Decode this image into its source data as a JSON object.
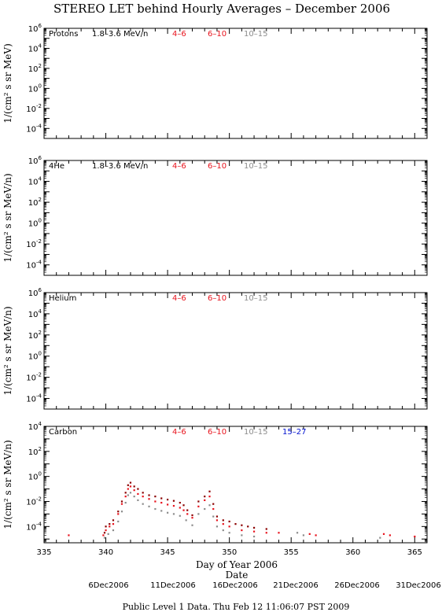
{
  "page": {
    "title": "STEREO LET behind Hourly Averages – December 2006",
    "xlabel": "Day of Year 2006",
    "date_axis_label": "Date",
    "date_labels": [
      "6Dec2006",
      "11Dec2006",
      "16Dec2006",
      "21Dec2006",
      "26Dec2006",
      "31Dec2006"
    ],
    "footer": "Public Level 1 Data. Thu Feb 12 11:06:07 PST 2009"
  },
  "colors": {
    "4-6": "#8b0000",
    "6-10": "#e8141e",
    "10-15": "#8c8c8c",
    "15-27": "#0010d0",
    "frame": "#000000"
  },
  "chart_data": [
    {
      "type": "scatter",
      "species": "Protons",
      "ylabel": "1/(cm² s sr MeV)",
      "ylog": true,
      "ylim_exp": [
        -5,
        6
      ],
      "ytick_exps": [
        6,
        4,
        2,
        0,
        -2,
        -4
      ],
      "xlim": [
        335,
        366
      ],
      "xticks": [
        335,
        340,
        345,
        350,
        355,
        360,
        365
      ],
      "legend": [
        {
          "label": "1.8–3.6 MeV/n",
          "color": "#000000"
        },
        {
          "label": "4–6",
          "color": "#e8141e"
        },
        {
          "label": "6–10",
          "color": "#e8141e"
        },
        {
          "label": "10–15",
          "color": "#8c8c8c"
        }
      ],
      "series": []
    },
    {
      "type": "scatter",
      "species": "4He",
      "ylabel": "1/(cm² s sr MeV/n)",
      "ylog": true,
      "ylim_exp": [
        -5,
        6
      ],
      "ytick_exps": [
        6,
        4,
        2,
        0,
        -2,
        -4
      ],
      "xlim": [
        335,
        366
      ],
      "xticks": [
        335,
        340,
        345,
        350,
        355,
        360,
        365
      ],
      "legend": [
        {
          "label": "1.8–3.6 MeV/n",
          "color": "#000000"
        },
        {
          "label": "4–6",
          "color": "#e8141e"
        },
        {
          "label": "6–10",
          "color": "#e8141e"
        },
        {
          "label": "10–15",
          "color": "#8c8c8c"
        }
      ],
      "series": []
    },
    {
      "type": "scatter",
      "species": "Helium",
      "ylabel": "1/(cm² s sr MeV/n)",
      "ylog": true,
      "ylim_exp": [
        -5,
        6
      ],
      "ytick_exps": [
        6,
        4,
        2,
        0,
        -2,
        -4
      ],
      "xlim": [
        335,
        366
      ],
      "xticks": [
        335,
        340,
        345,
        350,
        355,
        360,
        365
      ],
      "legend": [
        {
          "label": "4–6",
          "color": "#e8141e"
        },
        {
          "label": "6–10",
          "color": "#e8141e"
        },
        {
          "label": "10–15",
          "color": "#8c8c8c"
        }
      ],
      "series": []
    },
    {
      "type": "scatter",
      "species": "Carbon",
      "ylabel": "1/(cm² s sr MeV/n)",
      "ylog": true,
      "ylim_exp": [
        -5.3,
        4
      ],
      "ytick_exps": [
        4,
        2,
        0,
        -2,
        -4
      ],
      "xlim": [
        335,
        366
      ],
      "xticks": [
        335,
        340,
        345,
        350,
        355,
        360,
        365
      ],
      "xtick_labels": [
        "335",
        "340",
        "345",
        "350",
        "355",
        "360",
        "365"
      ],
      "legend": [
        {
          "label": "4–6",
          "color": "#e8141e"
        },
        {
          "label": "6–10",
          "color": "#e8141e"
        },
        {
          "label": "10–15",
          "color": "#8c8c8c"
        },
        {
          "label": "15–27",
          "color": "#0010d0"
        }
      ],
      "series": [
        {
          "key": "4-6",
          "color": "#8b0000",
          "points": [
            [
              339.9,
              -4.5
            ],
            [
              340.0,
              -4.0
            ],
            [
              340.3,
              -3.8
            ],
            [
              340.6,
              -3.5
            ],
            [
              341.0,
              -2.8
            ],
            [
              341.3,
              -2.0
            ],
            [
              341.6,
              -1.3
            ],
            [
              341.8,
              -0.7
            ],
            [
              342.0,
              -0.5
            ],
            [
              342.3,
              -0.8
            ],
            [
              342.6,
              -1.0
            ],
            [
              343.0,
              -1.3
            ],
            [
              343.5,
              -1.5
            ],
            [
              344.0,
              -1.6
            ],
            [
              344.5,
              -1.75
            ],
            [
              345.0,
              -1.85
            ],
            [
              345.5,
              -1.95
            ],
            [
              346.0,
              -2.1
            ],
            [
              346.3,
              -2.3
            ],
            [
              346.6,
              -2.7
            ],
            [
              347.0,
              -3.1
            ],
            [
              347.5,
              -2.0
            ],
            [
              348.0,
              -1.6
            ],
            [
              348.4,
              -1.2
            ],
            [
              348.7,
              -2.2
            ],
            [
              349.0,
              -3.2
            ],
            [
              349.5,
              -3.5
            ],
            [
              350.0,
              -3.6
            ],
            [
              350.5,
              -3.8
            ],
            [
              351.0,
              -3.9
            ],
            [
              351.5,
              -4.0
            ],
            [
              352.0,
              -4.1
            ],
            [
              353.0,
              -4.2
            ]
          ]
        },
        {
          "key": "6-10",
          "color": "#e8141e",
          "points": [
            [
              337.0,
              -4.7
            ],
            [
              339.8,
              -4.7
            ],
            [
              340.0,
              -4.3
            ],
            [
              340.3,
              -4.0
            ],
            [
              340.6,
              -3.8
            ],
            [
              341.0,
              -3.0
            ],
            [
              341.3,
              -2.2
            ],
            [
              341.6,
              -1.6
            ],
            [
              341.8,
              -1.0
            ],
            [
              342.0,
              -0.8
            ],
            [
              342.3,
              -1.1
            ],
            [
              342.6,
              -1.4
            ],
            [
              343.0,
              -1.6
            ],
            [
              343.5,
              -1.8
            ],
            [
              344.0,
              -2.0
            ],
            [
              344.5,
              -2.1
            ],
            [
              345.0,
              -2.25
            ],
            [
              345.5,
              -2.35
            ],
            [
              346.0,
              -2.5
            ],
            [
              346.3,
              -2.7
            ],
            [
              346.6,
              -3.0
            ],
            [
              347.0,
              -3.3
            ],
            [
              347.5,
              -2.4
            ],
            [
              348.0,
              -1.9
            ],
            [
              348.4,
              -1.6
            ],
            [
              348.7,
              -2.6
            ],
            [
              349.0,
              -3.5
            ],
            [
              349.5,
              -3.8
            ],
            [
              350.0,
              -4.0
            ],
            [
              351.0,
              -4.3
            ],
            [
              352.0,
              -4.4
            ],
            [
              353.0,
              -4.5
            ],
            [
              354.0,
              -4.5
            ],
            [
              356.5,
              -4.6
            ],
            [
              357.0,
              -4.7
            ],
            [
              362.5,
              -4.6
            ],
            [
              363.0,
              -4.7
            ],
            [
              365.0,
              -4.8
            ]
          ]
        },
        {
          "key": "10-15",
          "color": "#8c8c8c",
          "points": [
            [
              339.9,
              -4.9
            ],
            [
              340.2,
              -4.6
            ],
            [
              340.6,
              -4.3
            ],
            [
              341.0,
              -3.6
            ],
            [
              341.3,
              -2.8
            ],
            [
              341.6,
              -2.1
            ],
            [
              341.8,
              -1.5
            ],
            [
              342.0,
              -1.3
            ],
            [
              342.3,
              -1.6
            ],
            [
              342.6,
              -1.9
            ],
            [
              343.0,
              -2.2
            ],
            [
              343.5,
              -2.4
            ],
            [
              344.0,
              -2.6
            ],
            [
              344.5,
              -2.75
            ],
            [
              345.0,
              -2.9
            ],
            [
              345.5,
              -3.0
            ],
            [
              346.0,
              -3.15
            ],
            [
              346.5,
              -3.5
            ],
            [
              347.0,
              -3.9
            ],
            [
              347.5,
              -3.0
            ],
            [
              348.0,
              -2.6
            ],
            [
              348.4,
              -2.3
            ],
            [
              348.7,
              -3.2
            ],
            [
              349.0,
              -4.0
            ],
            [
              349.5,
              -4.3
            ],
            [
              350.0,
              -4.5
            ],
            [
              351.0,
              -4.7
            ],
            [
              352.0,
              -4.8
            ],
            [
              355.5,
              -4.5
            ],
            [
              356.0,
              -4.7
            ],
            [
              362.2,
              -4.9
            ]
          ]
        }
      ]
    }
  ]
}
